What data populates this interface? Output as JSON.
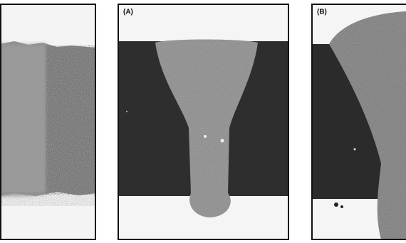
{
  "panels": {
    "labels": [
      "(A)",
      "(B)"
    ]
  }
}
